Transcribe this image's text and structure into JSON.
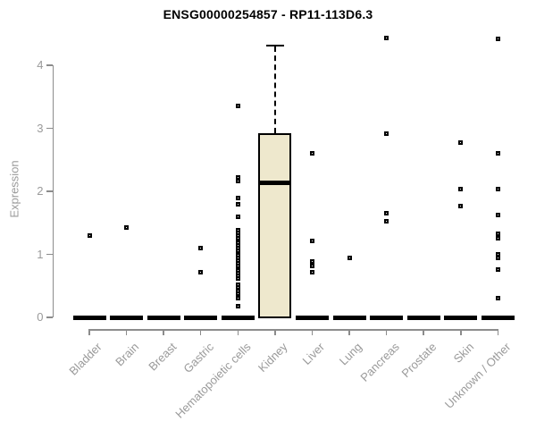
{
  "chart_data": {
    "type": "boxplot",
    "title": "ENSG00000254857 - RP11-113D6.3",
    "xlabel": "",
    "ylabel": "Expression",
    "ylim": [
      0,
      4.65
    ],
    "yticks": [
      0,
      1,
      2,
      3,
      4
    ],
    "grid": false,
    "legend": null,
    "point_marker": "open-square",
    "categories": [
      "Bladder",
      "Brain",
      "Breast",
      "Gastric",
      "Hematopoietic cells",
      "Kidney",
      "Liver",
      "Lung",
      "Pancreas",
      "Prostate",
      "Skin",
      "Unknown / Other"
    ],
    "boxes": [
      {
        "category": "Bladder",
        "q1": 0,
        "median": 0,
        "q3": 0,
        "whisker_low": 0,
        "whisker_high": 0,
        "outliers": [
          1.3
        ]
      },
      {
        "category": "Brain",
        "q1": 0,
        "median": 0,
        "q3": 0,
        "whisker_low": 0,
        "whisker_high": 0,
        "outliers": [
          1.42
        ]
      },
      {
        "category": "Breast",
        "q1": 0,
        "median": 0,
        "q3": 0,
        "whisker_low": 0,
        "whisker_high": 0,
        "outliers": []
      },
      {
        "category": "Gastric",
        "q1": 0,
        "median": 0,
        "q3": 0,
        "whisker_low": 0,
        "whisker_high": 0,
        "outliers": [
          1.1,
          0.71
        ]
      },
      {
        "category": "Hematopoietic cells",
        "q1": 0,
        "median": 0,
        "q3": 0,
        "whisker_low": 0,
        "whisker_high": 0,
        "outliers": [
          3.35,
          2.22,
          2.17,
          1.9,
          1.8,
          1.6,
          1.38,
          1.34,
          1.3,
          1.26,
          1.22,
          1.18,
          1.14,
          1.1,
          1.06,
          1.02,
          0.98,
          0.94,
          0.9,
          0.86,
          0.82,
          0.78,
          0.74,
          0.7,
          0.66,
          0.62,
          0.52,
          0.47,
          0.42,
          0.37,
          0.3,
          0.18
        ]
      },
      {
        "category": "Kidney",
        "q1": 0.03,
        "median": 2.13,
        "q3": 2.93,
        "whisker_low": 0,
        "whisker_high": 4.33,
        "outliers": []
      },
      {
        "category": "Liver",
        "q1": 0,
        "median": 0,
        "q3": 0,
        "whisker_low": 0,
        "whisker_high": 0,
        "outliers": [
          2.6,
          1.22,
          0.88,
          0.82,
          0.72
        ]
      },
      {
        "category": "Lung",
        "q1": 0,
        "median": 0,
        "q3": 0,
        "whisker_low": 0,
        "whisker_high": 0,
        "outliers": [
          0.94
        ]
      },
      {
        "category": "Pancreas",
        "q1": 0,
        "median": 0,
        "q3": 0,
        "whisker_low": 0,
        "whisker_high": 0,
        "outliers": [
          4.44,
          2.91,
          1.65,
          1.53
        ]
      },
      {
        "category": "Prostate",
        "q1": 0,
        "median": 0,
        "q3": 0,
        "whisker_low": 0,
        "whisker_high": 0,
        "outliers": []
      },
      {
        "category": "Skin",
        "q1": 0,
        "median": 0,
        "q3": 0,
        "whisker_low": 0,
        "whisker_high": 0,
        "outliers": [
          2.77,
          2.04,
          1.76
        ]
      },
      {
        "category": "Unknown / Other",
        "q1": 0,
        "median": 0,
        "q3": 0,
        "whisker_low": 0,
        "whisker_high": 0,
        "outliers": [
          4.42,
          2.61,
          2.04,
          1.62,
          1.33,
          1.25,
          1.0,
          0.94,
          0.76,
          0.31
        ]
      }
    ]
  },
  "colors": {
    "box_fill": "#EEE8CD",
    "box_border": "#000000",
    "flat_box": "#000000",
    "axis_line": "#8c8c8c",
    "tick_label": "#9a9a9a",
    "title_text": "#000000",
    "background": "#ffffff"
  }
}
